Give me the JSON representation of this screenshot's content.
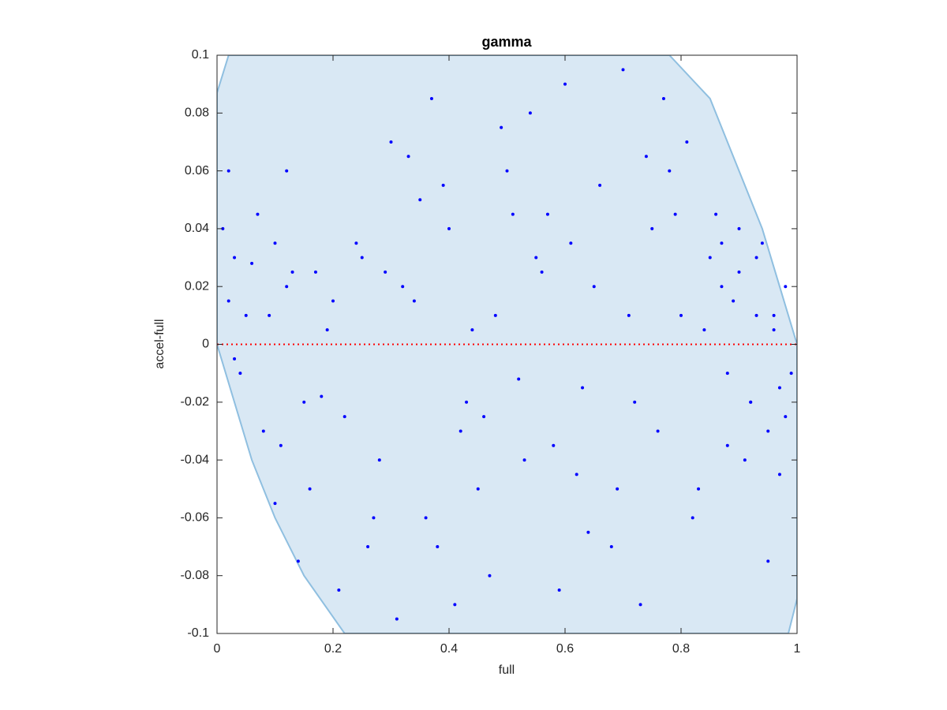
{
  "chart_data": {
    "type": "scatter",
    "title": "gamma",
    "x_label": "full",
    "y_label": "accel-full",
    "xlim": [
      0,
      1
    ],
    "ylim": [
      -0.1,
      0.1
    ],
    "xticks": [
      0,
      0.2,
      0.4,
      0.6,
      0.8,
      1
    ],
    "yticks": [
      -0.1,
      -0.08,
      -0.06,
      -0.04,
      -0.02,
      0,
      0.02,
      0.04,
      0.06,
      0.08,
      0.1
    ],
    "color": "#0000ff",
    "x": [
      0.01,
      0.03,
      0.05,
      0.02,
      0.08,
      0.1,
      0.12,
      0.04,
      0.06,
      0.15,
      0.18,
      0.11,
      0.13,
      0.09,
      0.16,
      0.2,
      0.22,
      0.25,
      0.28,
      0.3,
      0.32,
      0.27,
      0.35,
      0.38,
      0.4,
      0.42,
      0.37,
      0.45,
      0.48,
      0.5,
      0.47,
      0.52,
      0.55,
      0.58,
      0.6,
      0.62,
      0.57,
      0.65,
      0.68,
      0.7,
      0.72,
      0.75,
      0.73,
      0.78,
      0.8,
      0.82,
      0.77,
      0.85,
      0.87,
      0.88,
      0.9,
      0.92,
      0.93,
      0.95,
      0.96,
      0.97,
      0.98,
      0.99,
      0.94,
      0.91,
      0.86,
      0.83,
      0.89,
      0.84,
      0.81,
      0.76,
      0.74,
      0.71,
      0.69,
      0.66,
      0.63,
      0.61,
      0.59,
      0.56,
      0.53,
      0.51,
      0.49,
      0.46,
      0.44,
      0.41,
      0.39,
      0.36,
      0.34,
      0.31,
      0.29,
      0.26,
      0.24,
      0.21,
      0.19,
      0.17,
      0.14,
      0.12,
      0.07,
      0.03,
      0.02,
      0.1,
      0.33,
      0.43,
      0.54,
      0.64,
      0.79,
      0.95,
      0.98,
      0.9,
      0.88,
      0.93,
      0.97,
      0.96,
      0.92,
      0.87
    ],
    "y": [
      0.04,
      0.03,
      0.01,
      0.015,
      -0.03,
      0.035,
      0.06,
      -0.01,
      0.028,
      -0.02,
      -0.018,
      -0.035,
      0.025,
      0.01,
      -0.05,
      0.015,
      -0.025,
      0.03,
      -0.04,
      0.07,
      0.02,
      -0.06,
      0.05,
      -0.07,
      0.04,
      -0.03,
      0.085,
      -0.05,
      0.01,
      0.06,
      -0.08,
      -0.012,
      0.03,
      -0.035,
      0.09,
      -0.045,
      0.045,
      0.02,
      -0.07,
      0.095,
      -0.02,
      0.04,
      -0.09,
      0.06,
      0.01,
      -0.06,
      0.085,
      0.03,
      0.02,
      -0.01,
      0.025,
      -0.02,
      0.01,
      -0.03,
      0.005,
      -0.015,
      -0.025,
      -0.01,
      0.035,
      -0.04,
      0.045,
      -0.05,
      0.015,
      0.005,
      0.07,
      -0.03,
      0.065,
      0.01,
      -0.05,
      0.055,
      -0.015,
      0.035,
      -0.085,
      0.025,
      -0.04,
      0.045,
      0.075,
      -0.025,
      0.005,
      -0.09,
      0.055,
      -0.06,
      0.015,
      -0.095,
      0.025,
      -0.07,
      0.035,
      -0.085,
      0.005,
      0.025,
      -0.075,
      0.02,
      0.045,
      -0.005,
      0.06,
      -0.055,
      0.065,
      -0.02,
      0.08,
      -0.065,
      0.045,
      -0.075,
      0.02,
      0.04,
      -0.035,
      0.03,
      -0.045,
      0.01,
      -0.02,
      0.035
    ],
    "region": {
      "fill": "#d9e8f4",
      "stroke": "#8fbfe0",
      "x": [
        0.02,
        0.78,
        0.85,
        0.9,
        0.94,
        0.97,
        1,
        1,
        0.985,
        0.22,
        0.15,
        0.1,
        0.06,
        0.03,
        0,
        0
      ],
      "y": [
        0.1,
        0.1,
        0.085,
        0.06,
        0.04,
        0.02,
        0,
        -0.088,
        -0.1,
        -0.1,
        -0.08,
        -0.06,
        -0.04,
        -0.02,
        0,
        0.087
      ]
    },
    "reference_line": {
      "y": 0,
      "color": "#ff0000"
    }
  }
}
